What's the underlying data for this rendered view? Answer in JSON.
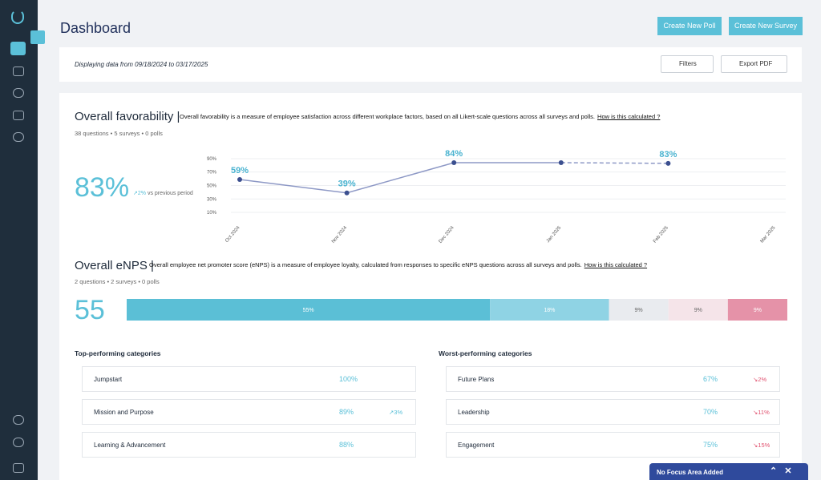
{
  "header": {
    "title": "Dashboard",
    "buttons": [
      "Create New Poll",
      "Create New Survey"
    ]
  },
  "filter_bar": {
    "range_text": "Displaying data from 09/18/2024 to 03/17/2025",
    "filters": "Filters",
    "export": "Export PDF"
  },
  "favorability": {
    "title": "Overall favorability |",
    "description": "Overall favorability is a measure of employee satisfaction across different workplace factors, based on all Likert-scale questions across all surveys and polls.",
    "link": "How is this calculated ?",
    "meta": "38 questions • 5 surveys • 0 polls",
    "score": "83%",
    "change": "↗2%",
    "change_note": "vs previous period"
  },
  "chart_data": {
    "type": "line",
    "categories": [
      "Oct 2024",
      "Nov 2024",
      "Dec 2024",
      "Jan 2025",
      "Feb 2025",
      "Mar 2025"
    ],
    "series": [
      {
        "name": "Favorability",
        "color": "#8e99c6",
        "values": [
          59,
          39,
          84,
          84,
          83,
          null
        ],
        "value_labels": [
          "59%",
          "39%",
          "84%",
          null,
          "83%",
          null
        ]
      }
    ],
    "dashed_from": 3,
    "ylim": [
      0,
      100
    ],
    "yticks": [
      {
        "value": 10,
        "label": "10%"
      },
      {
        "value": 30,
        "label": "30%"
      },
      {
        "value": 50,
        "label": "50%"
      },
      {
        "value": 70,
        "label": "70%"
      },
      {
        "value": 90,
        "label": "90%"
      }
    ],
    "grid": true
  },
  "enps": {
    "title": "Overall eNPS |",
    "description": "Overall employee net promoter score (eNPS) is a measure of employee loyalty, calculated from responses to specific eNPS questions across all surveys and polls.",
    "link": "How is this calculated ?",
    "meta": "2 questions • 2 surveys • 0 polls",
    "score": "55",
    "bar": {
      "type": "stacked-bar",
      "values": [
        55,
        18,
        9,
        9,
        9
      ],
      "value_labels": [
        "55%",
        "18%",
        "9%",
        "9%",
        "9%"
      ],
      "colors": [
        "#5bbfd6",
        "#8fd3e4",
        "#e9ebef",
        "#f5e4e9",
        "#e592a8"
      ]
    }
  },
  "top": {
    "title": "Top-performing categories",
    "rows": [
      {
        "name": "Jumpstart",
        "value": "100%"
      },
      {
        "name": "Mission and Purpose",
        "value": "89%",
        "change": "↗3%"
      },
      {
        "name": "Learning & Advancement",
        "value": "88%"
      }
    ]
  },
  "worst": {
    "title": "Worst-performing categories",
    "rows": [
      {
        "name": "Future Plans",
        "value": "67%",
        "change": "↘2%"
      },
      {
        "name": "Leadership",
        "value": "70%",
        "change": "↘11%"
      },
      {
        "name": "Engagement",
        "value": "75%",
        "change": "↘15%"
      }
    ]
  },
  "toast": {
    "text": "No Focus Area Added"
  }
}
